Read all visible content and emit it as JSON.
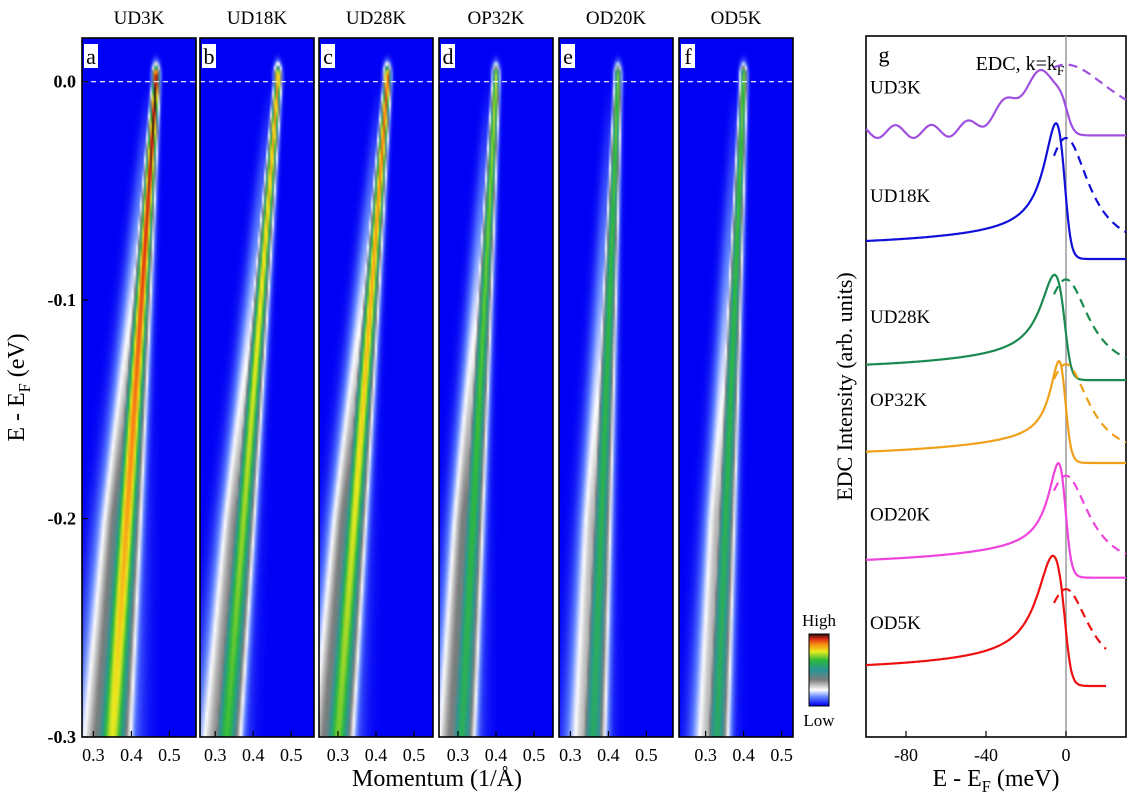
{
  "panels": [
    {
      "letter": "a",
      "title": "UD3K",
      "ticks": [
        "0.3",
        "0.4",
        "0.5"
      ],
      "kmin": 0.27,
      "kmax": 0.57,
      "kF": 0.465,
      "kBottom": 0.35,
      "tail": 0.42,
      "width": 0.18,
      "fg": 0.95,
      "gray": 0.22
    },
    {
      "letter": "b",
      "title": "UD18K",
      "ticks": [
        "0.3",
        "0.4",
        "0.5"
      ],
      "kmin": 0.26,
      "kmax": 0.56,
      "kF": 0.465,
      "kBottom": 0.33,
      "tail": 0.35,
      "width": 0.14,
      "fg": 0.75,
      "gray": 0.22
    },
    {
      "letter": "c",
      "title": "UD28K",
      "ticks": [
        "0.3",
        "0.4",
        "0.5"
      ],
      "kmin": 0.25,
      "kmax": 0.55,
      "kF": 0.43,
      "kBottom": 0.3,
      "tail": 0.4,
      "width": 0.15,
      "fg": 0.82,
      "gray": 0.22
    },
    {
      "letter": "d",
      "title": "OP32K",
      "ticks": [
        "0.3",
        "0.4",
        "0.5"
      ],
      "kmin": 0.25,
      "kmax": 0.55,
      "kF": 0.4,
      "kBottom": 0.31,
      "tail": 0.38,
      "width": 0.13,
      "fg": 0.55,
      "gray": 0.3
    },
    {
      "letter": "e",
      "title": "OD20K",
      "ticks": [
        "0.3",
        "0.4",
        "0.5"
      ],
      "kmin": 0.27,
      "kmax": 0.57,
      "kF": 0.425,
      "kBottom": 0.36,
      "tail": 0.3,
      "width": 0.12,
      "fg": 0.45,
      "gray": 0.35
    },
    {
      "letter": "f",
      "title": "OD5K",
      "ticks": [
        "0.3",
        "0.4",
        "0.5"
      ],
      "kmin": 0.23,
      "kmax": 0.53,
      "kF": 0.4,
      "kBottom": 0.33,
      "tail": 0.3,
      "width": 0.11,
      "fg": 0.45,
      "gray": 0.35
    }
  ],
  "left_axis": {
    "label_main": "E - E",
    "label_sub": "F",
    "label_unit": " (eV)",
    "ticks": [
      {
        "v": 0.0,
        "label": "0.0"
      },
      {
        "v": -0.1,
        "label": "-0.1"
      },
      {
        "v": -0.2,
        "label": "-0.2"
      },
      {
        "v": -0.3,
        "label": "-0.3"
      }
    ],
    "range": [
      -0.3,
      0.02
    ],
    "xlabel": "Momentum (1/Å)"
  },
  "colorbar": {
    "high": "High",
    "low": "Low"
  },
  "chart_data": {
    "type": "line",
    "panel_letter": "g",
    "title_main": "EDC, k=k",
    "title_sub": "F",
    "ylabel": "EDC Intensity (arb. units)",
    "xlabel_main": "E - E",
    "xlabel_sub": "F",
    "xlabel_unit": " (meV)",
    "xlim": [
      -100,
      30
    ],
    "xticks": [
      {
        "v": -80,
        "label": "-80"
      },
      {
        "v": -40,
        "label": "-40"
      },
      {
        "v": 0,
        "label": "0"
      }
    ],
    "series": [
      {
        "name": "UD3K",
        "color": "#a050e0",
        "baseline": 3.1,
        "peakPos": -8,
        "peakAmp": 0.45,
        "peakWidth": 26,
        "bg": 0.05,
        "symAmp": 0.55,
        "xEnd": 30,
        "kind": "broad"
      },
      {
        "name": "UD18K",
        "color": "#1010d8",
        "baseline": 2.15,
        "peakPos": -4,
        "peakAmp": 0.85,
        "peakWidth": 8,
        "bg": 0.1,
        "symAmp": 0.9,
        "xEnd": 30,
        "kind": "peak"
      },
      {
        "name": "UD28K",
        "color": "#1a8a50",
        "baseline": 1.2,
        "peakPos": -5,
        "peakAmp": 0.6,
        "peakWidth": 9,
        "bg": 0.08,
        "symAmp": 0.75,
        "xEnd": 30,
        "kind": "peak"
      },
      {
        "name": "OP32K",
        "color": "#f0a018",
        "baseline": 0.55,
        "peakPos": -2,
        "peakAmp": 0.7,
        "peakWidth": 6,
        "bg": 0.05,
        "symAmp": 0.75,
        "xEnd": 30,
        "kind": "peak"
      },
      {
        "name": "OD20K",
        "color": "#ee44dd",
        "baseline": -0.35,
        "peakPos": -2,
        "peakAmp": 0.75,
        "peakWidth": 7,
        "bg": 0.1,
        "symAmp": 0.75,
        "xEnd": 30,
        "kind": "peak"
      },
      {
        "name": "OD5K",
        "color": "#ee1111",
        "baseline": -1.2,
        "peakPos": -6,
        "peakAmp": 0.75,
        "peakWidth": 10,
        "bg": 0.12,
        "symAmp": 0.7,
        "xEnd": 20,
        "kind": "peak"
      }
    ]
  }
}
